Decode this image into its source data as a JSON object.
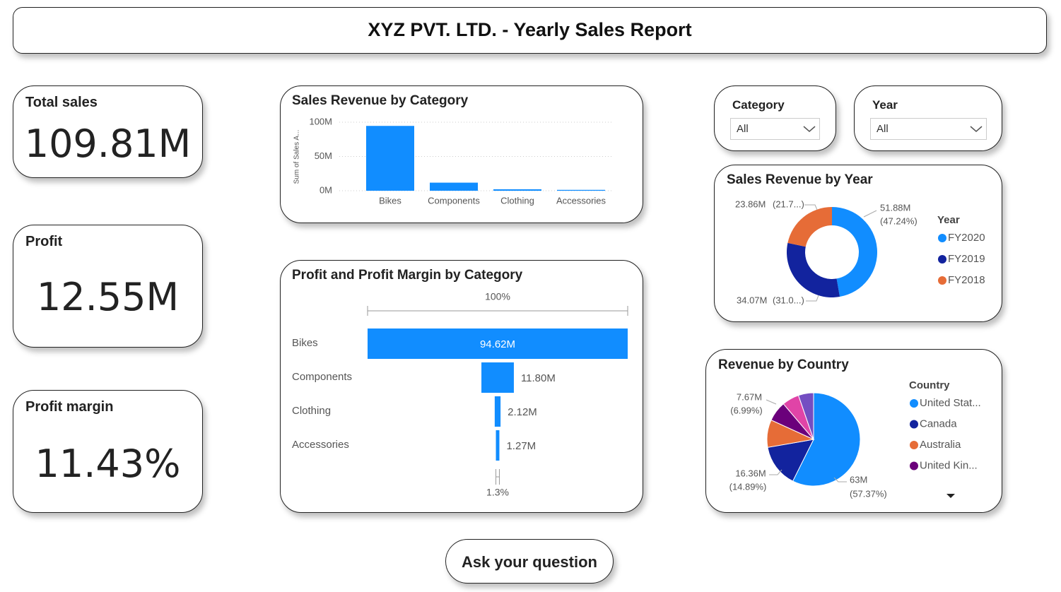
{
  "header": {
    "title": "XYZ PVT. LTD. - Yearly Sales Report"
  },
  "cards": [
    {
      "title": "Total sales",
      "value": "109.81M"
    },
    {
      "title": "Profit",
      "value": "12.55M"
    },
    {
      "title": "Profit margin",
      "value": "11.43%"
    }
  ],
  "slicers": [
    {
      "title": "Category",
      "value": "All"
    },
    {
      "title": "Year",
      "value": "All"
    }
  ],
  "button": "Ask your question",
  "chart_data": [
    {
      "type": "bar",
      "title": "Sales Revenue by Category",
      "y_label": "Sum of Sales A...",
      "categories": [
        "Bikes",
        "Components",
        "Clothing",
        "Accessories"
      ],
      "values": [
        94.62,
        11.8,
        2.12,
        1.27
      ],
      "color": "#118DFF",
      "ylim": [
        0,
        100
      ],
      "yticks": [
        {
          "value": 0,
          "label": "0M"
        },
        {
          "value": 50,
          "label": "50M"
        },
        {
          "value": 100,
          "label": "100M"
        }
      ],
      "grid": true
    },
    {
      "type": "funnel",
      "title": "Profit and Profit Margin by Category",
      "categories": [
        "Bikes",
        "Components",
        "Clothing",
        "Accessories"
      ],
      "values": [
        94.62,
        11.8,
        2.12,
        1.27
      ],
      "value_labels": [
        "94.62M",
        "11.80M",
        "2.12M",
        "1.27M"
      ],
      "color": "#118DFF",
      "top_label": "100%",
      "bottom_label": "1.3%"
    },
    {
      "type": "donut",
      "title": "Sales Revenue by Year",
      "legend_title": "Year",
      "categories": [
        "FY2020",
        "FY2019",
        "FY2018"
      ],
      "values": [
        51.88,
        34.07,
        23.86
      ],
      "value_labels": [
        "51.88M",
        "34.07M",
        "23.86M"
      ],
      "percent_labels": [
        "(47.24%)",
        "(31.0...)",
        "(21.7...)"
      ],
      "colors": [
        "#118DFF",
        "#12239E",
        "#E66C37"
      ]
    },
    {
      "type": "pie",
      "title": "Revenue by Country",
      "legend_title": "Country",
      "categories": [
        "United Stat...",
        "Canada",
        "Australia",
        "United Kin...",
        null,
        null
      ],
      "values": [
        63,
        16.36,
        10.5,
        7.67,
        6.5,
        5.8
      ],
      "value_labels": [
        "63M",
        "16.36M",
        null,
        "7.67M",
        null,
        null
      ],
      "percent_labels": [
        "(57.37%)",
        "(14.89%)",
        null,
        "(6.99%)",
        null,
        null
      ],
      "colors": [
        "#118DFF",
        "#12239E",
        "#E66C37",
        "#6B007B",
        "#E044A7",
        "#744EC2"
      ]
    }
  ]
}
